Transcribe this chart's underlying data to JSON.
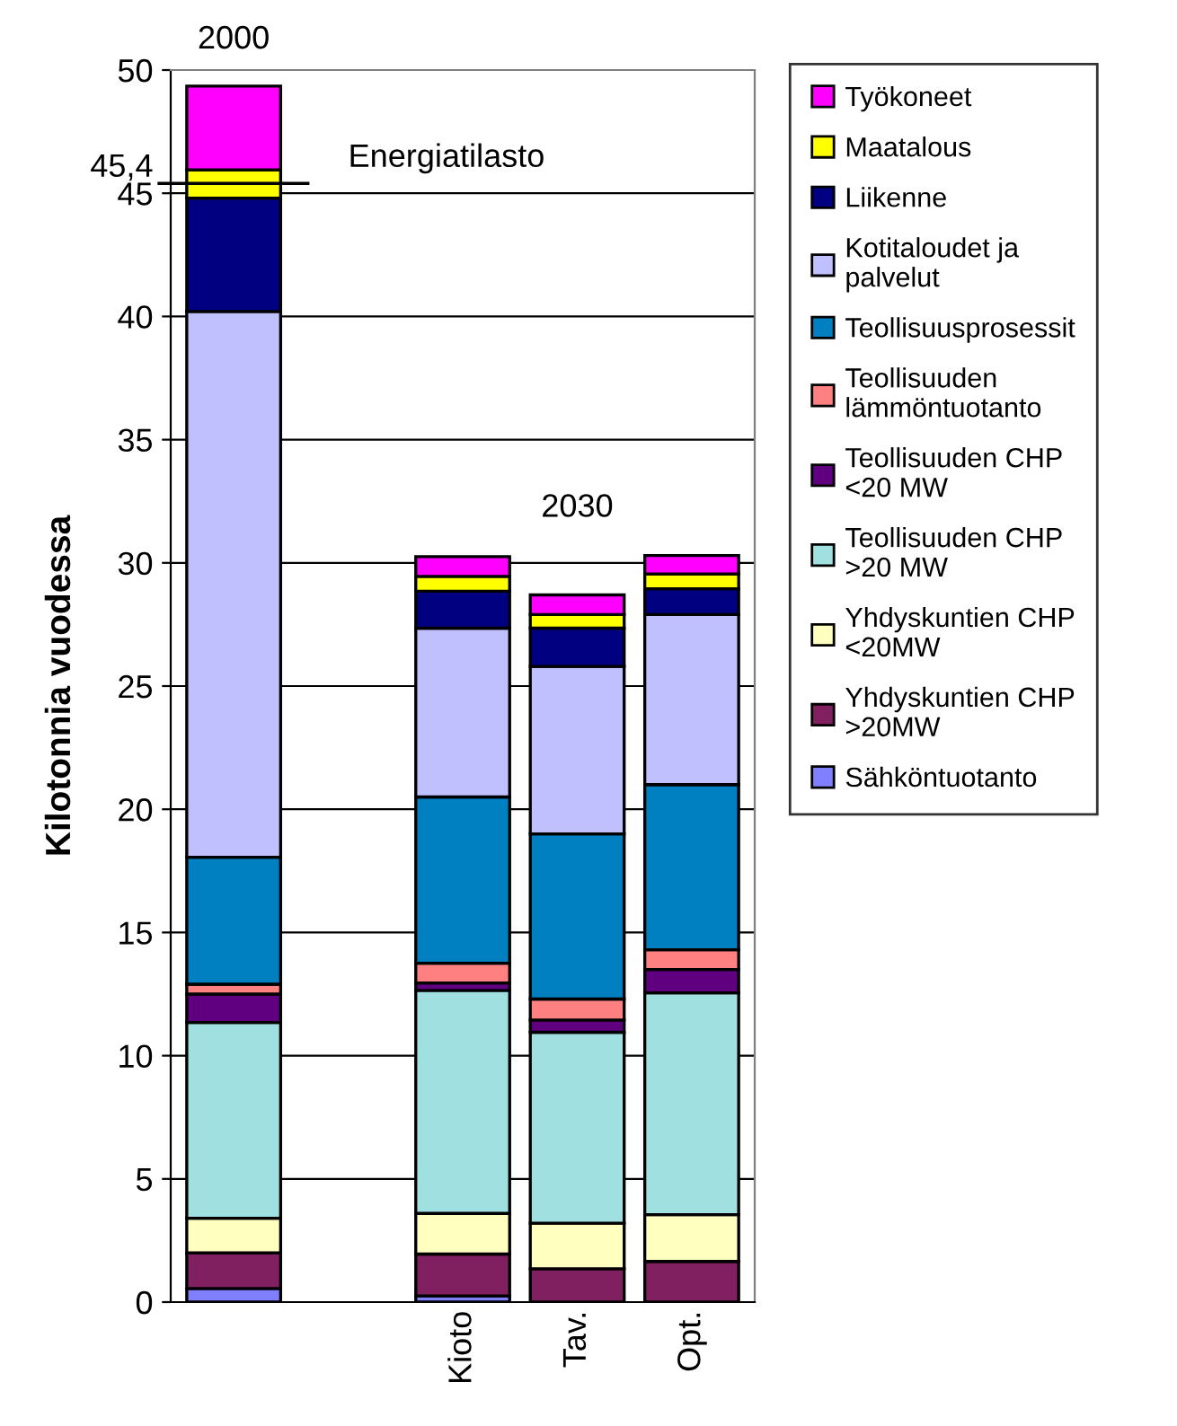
{
  "chart_data": {
    "type": "bar",
    "stacked": true,
    "ylabel": "Kilotonnia vuodessa",
    "categories": [
      null,
      null,
      "Kioto",
      "Tav.",
      "Opt."
    ],
    "series": [
      {
        "name": "Sähköntuotanto",
        "color": "#8080ff",
        "values": [
          0.55,
          null,
          0.25,
          null,
          null
        ]
      },
      {
        "name": "Yhdyskuntien CHP >20MW",
        "color": "#802060",
        "values": [
          1.45,
          null,
          1.7,
          1.35,
          1.65
        ]
      },
      {
        "name": "Yhdyskuntien CHP <20MW",
        "color": "#ffffc0",
        "values": [
          1.4,
          null,
          1.65,
          1.85,
          1.9
        ]
      },
      {
        "name": "Teollisuuden CHP >20 MW",
        "color": "#a0e0e0",
        "values": [
          7.95,
          null,
          9.05,
          7.75,
          9.0
        ]
      },
      {
        "name": "Teollisuuden CHP <20 MW",
        "color": "#600080",
        "values": [
          1.15,
          null,
          0.3,
          0.5,
          0.95
        ]
      },
      {
        "name": "Teollisuuden lämmöntuotanto",
        "color": "#ff8080",
        "values": [
          0.4,
          null,
          0.8,
          0.85,
          0.8
        ]
      },
      {
        "name": "Teollisuusprosessit",
        "color": "#0080c0",
        "values": [
          5.15,
          null,
          6.75,
          6.7,
          6.7
        ]
      },
      {
        "name": "Kotitaloudet ja palvelut",
        "color": "#c0c0ff",
        "values": [
          22.15,
          null,
          6.85,
          6.8,
          6.9
        ]
      },
      {
        "name": "Liikenne",
        "color": "#000080",
        "values": [
          4.6,
          null,
          1.5,
          1.55,
          1.05
        ]
      },
      {
        "name": "Maatalous",
        "color": "#ffff00",
        "values": [
          1.15,
          null,
          0.6,
          0.55,
          0.6
        ]
      },
      {
        "name": "Työkoneet",
        "color": "#ff00ff",
        "values": [
          3.4,
          null,
          0.8,
          0.8,
          0.75
        ]
      }
    ],
    "ylim": [
      0,
      50
    ],
    "yticks": [
      0,
      5,
      10,
      15,
      20,
      25,
      30,
      35,
      40,
      45,
      {
        "value": 45.4,
        "label": "45,4"
      },
      50
    ],
    "ref_lines": [
      {
        "axis": "y",
        "value": 45.4,
        "label": "Energiatilasto",
        "color": "#000000"
      }
    ],
    "annotations": [
      "2000",
      "2030"
    ],
    "grid": "y",
    "legend": "right"
  }
}
